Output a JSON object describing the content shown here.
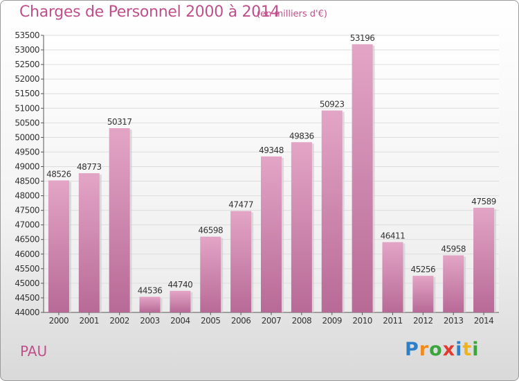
{
  "header": {
    "title": "Charges de Personnel 2000 à 2014",
    "subtitle": "(en milliers d'€)"
  },
  "footer": {
    "city": "PAU",
    "logo_letters": [
      {
        "ch": "P",
        "color": "#2f7fc8"
      },
      {
        "ch": "r",
        "color": "#f08a1c"
      },
      {
        "ch": "o",
        "color": "#3aa53a"
      },
      {
        "ch": "x",
        "color": "#e23a2e"
      },
      {
        "ch": "i",
        "color": "#2f7fc8"
      },
      {
        "ch": "t",
        "color": "#f0b31c"
      },
      {
        "ch": "i",
        "color": "#3aa53a"
      }
    ]
  },
  "chart_data": {
    "type": "bar",
    "title": "Charges de Personnel 2000 à 2014",
    "subtitle": "(en milliers d'€)",
    "categories": [
      "2000",
      "2001",
      "2002",
      "2003",
      "2004",
      "2005",
      "2006",
      "2007",
      "2008",
      "2009",
      "2010",
      "2011",
      "2012",
      "2013",
      "2014"
    ],
    "values": [
      48526,
      48773,
      50317,
      44536,
      44740,
      46598,
      47477,
      49348,
      49836,
      50923,
      53196,
      46411,
      45256,
      45958,
      47589
    ],
    "ylim": [
      44000,
      53500
    ],
    "ytick_step": 500,
    "grid": true,
    "bar_color": "#d47aa6",
    "xlabel": "",
    "ylabel": ""
  }
}
